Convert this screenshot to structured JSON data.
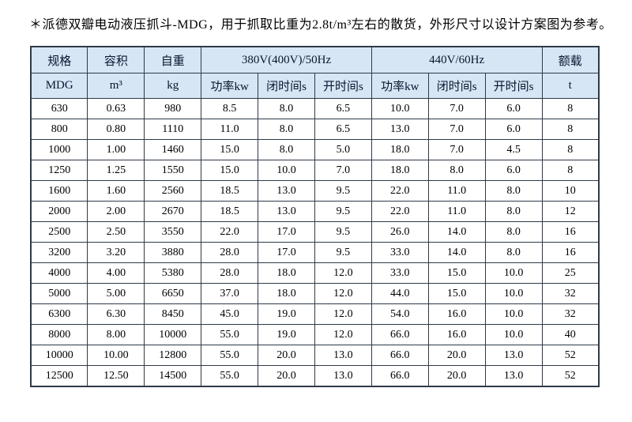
{
  "page": {
    "note": "＊派德双瓣电动液压抓斗-MDG，用于抓取比重为2.8t/m³左右的散货，外形尺寸以设计方案图为参考。"
  },
  "colors": {
    "header_bg": "#d6e6f5",
    "border": "#2e3a48",
    "text": "#000000"
  },
  "table": {
    "header_top": [
      {
        "label": "规格"
      },
      {
        "label": "容积"
      },
      {
        "label": "自重"
      },
      {
        "label": "380V(400V)/50Hz"
      },
      {
        "label": "440V/60Hz"
      },
      {
        "label": "额载"
      }
    ],
    "header_sub": [
      "MDG",
      "m³",
      "kg",
      "功率kw",
      "闭时间s",
      "开时间s",
      "功率kw",
      "闭时间s",
      "开时间s",
      "t"
    ],
    "rows": [
      [
        "630",
        "0.63",
        "980",
        "8.5",
        "8.0",
        "6.5",
        "10.0",
        "7.0",
        "6.0",
        "8"
      ],
      [
        "800",
        "0.80",
        "1110",
        "11.0",
        "8.0",
        "6.5",
        "13.0",
        "7.0",
        "6.0",
        "8"
      ],
      [
        "1000",
        "1.00",
        "1460",
        "15.0",
        "8.0",
        "5.0",
        "18.0",
        "7.0",
        "4.5",
        "8"
      ],
      [
        "1250",
        "1.25",
        "1550",
        "15.0",
        "10.0",
        "7.0",
        "18.0",
        "8.0",
        "6.0",
        "8"
      ],
      [
        "1600",
        "1.60",
        "2560",
        "18.5",
        "13.0",
        "9.5",
        "22.0",
        "11.0",
        "8.0",
        "10"
      ],
      [
        "2000",
        "2.00",
        "2670",
        "18.5",
        "13.0",
        "9.5",
        "22.0",
        "11.0",
        "8.0",
        "12"
      ],
      [
        "2500",
        "2.50",
        "3550",
        "22.0",
        "17.0",
        "9.5",
        "26.0",
        "14.0",
        "8.0",
        "16"
      ],
      [
        "3200",
        "3.20",
        "3880",
        "28.0",
        "17.0",
        "9.5",
        "33.0",
        "14.0",
        "8.0",
        "16"
      ],
      [
        "4000",
        "4.00",
        "5380",
        "28.0",
        "18.0",
        "12.0",
        "33.0",
        "15.0",
        "10.0",
        "25"
      ],
      [
        "5000",
        "5.00",
        "6650",
        "37.0",
        "18.0",
        "12.0",
        "44.0",
        "15.0",
        "10.0",
        "32"
      ],
      [
        "6300",
        "6.30",
        "8450",
        "45.0",
        "19.0",
        "12.0",
        "54.0",
        "16.0",
        "10.0",
        "32"
      ],
      [
        "8000",
        "8.00",
        "10000",
        "55.0",
        "19.0",
        "12.0",
        "66.0",
        "16.0",
        "10.0",
        "40"
      ],
      [
        "10000",
        "10.00",
        "12800",
        "55.0",
        "20.0",
        "13.0",
        "66.0",
        "20.0",
        "13.0",
        "52"
      ],
      [
        "12500",
        "12.50",
        "14500",
        "55.0",
        "20.0",
        "13.0",
        "66.0",
        "20.0",
        "13.0",
        "52"
      ]
    ]
  }
}
